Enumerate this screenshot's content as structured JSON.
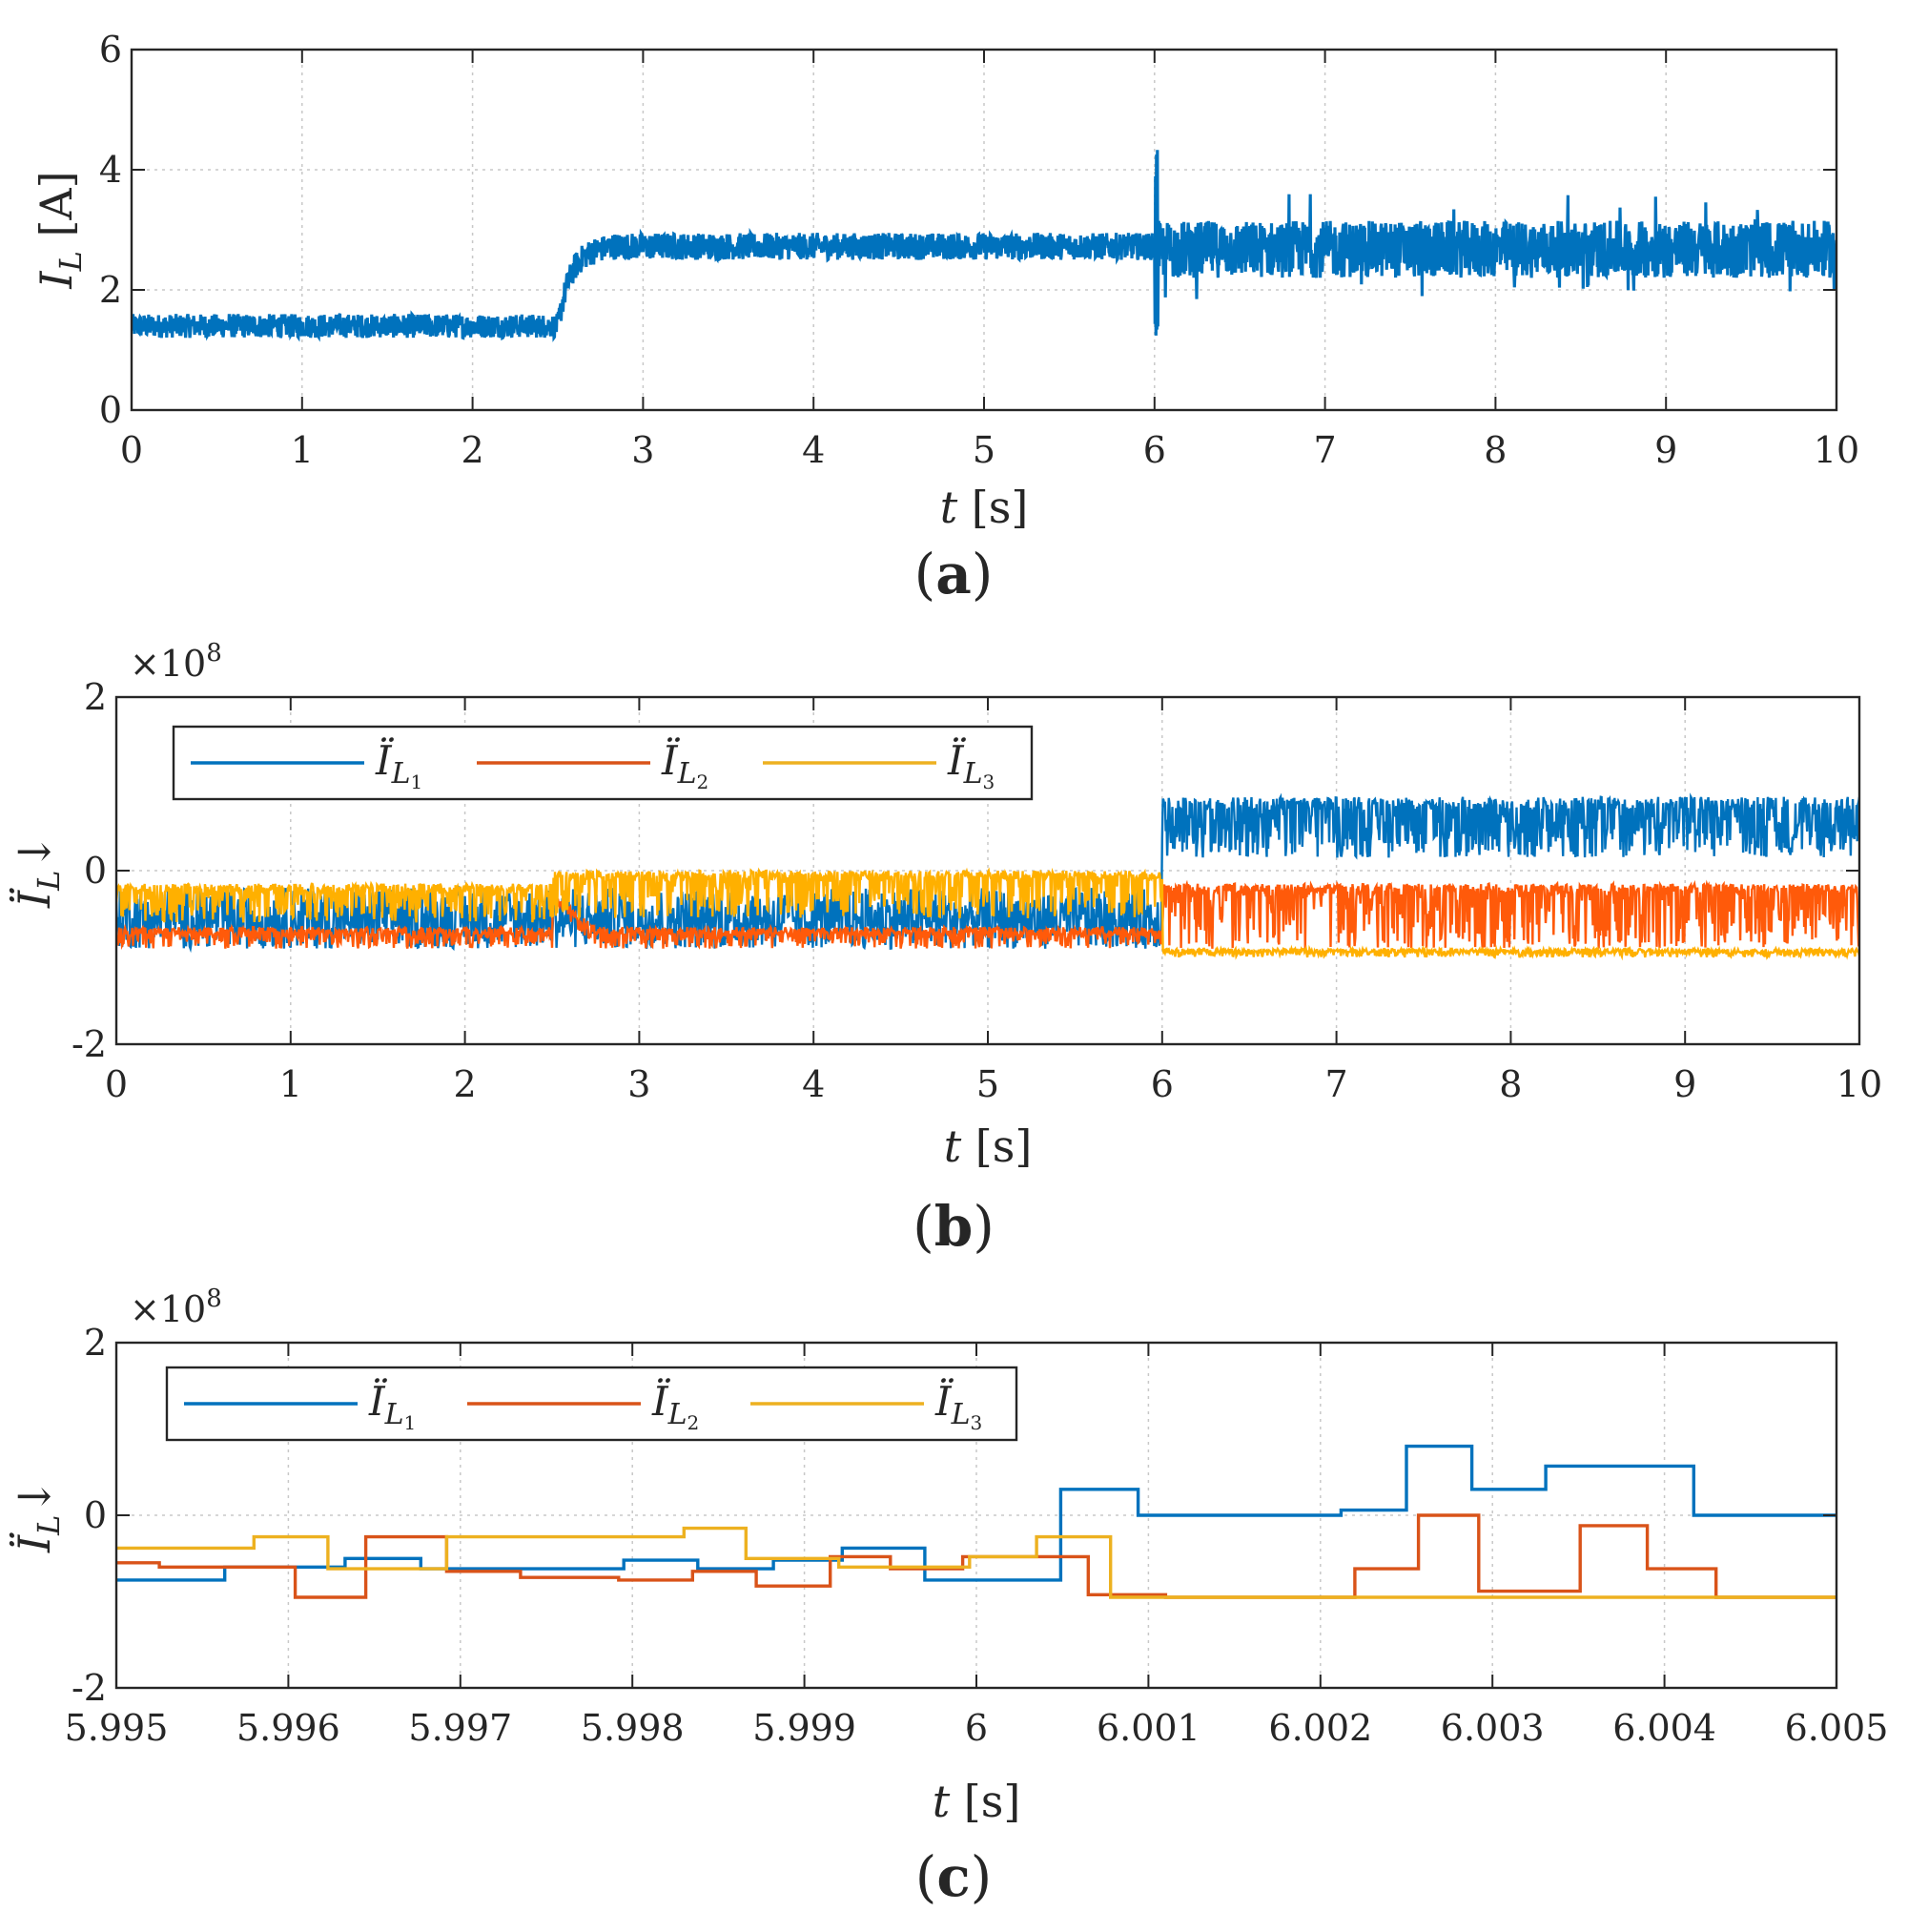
{
  "colors": {
    "IL1": "#0072BD",
    "IL2": "#D95319",
    "IL2_dense": "#FF5A0A",
    "IL3": "#EDB120",
    "IL3_dense": "#FFB000",
    "axis": "#262626",
    "grid": "#c8c8c8"
  },
  "chart_data": [
    {
      "id": "a",
      "type": "line",
      "panel_label": "a",
      "xlabel": "t [s]",
      "xlabel_var": "t",
      "xlabel_unit": "[s]",
      "ylabel_main": "I",
      "ylabel_sub": "L",
      "ylabel_unit": "[A]",
      "xlim": [
        0,
        10
      ],
      "ylim": [
        0,
        6
      ],
      "x_ticks": [
        "0",
        "1",
        "2",
        "3",
        "4",
        "5",
        "6",
        "7",
        "8",
        "9",
        "10"
      ],
      "y_ticks": [
        "0",
        "2",
        "4",
        "6"
      ],
      "grid": true,
      "series": [
        {
          "name": "I_L",
          "color_key": "IL1",
          "description": "noisy measured inductor current",
          "segments": [
            {
              "t": [
                0,
                2.5
              ],
              "mean": 1.4,
              "band": [
                1.2,
                1.6
              ]
            },
            {
              "t": [
                2.5,
                6.0
              ],
              "mean": 2.75,
              "band": [
                2.5,
                2.95
              ],
              "rise_from": 1.4,
              "rise_time": 0.3
            },
            {
              "t": [
                6.0,
                10.0
              ],
              "mean": 2.7,
              "band": [
                2.2,
                3.15
              ],
              "spike_max": 4.4,
              "spike_min": 1.1
            }
          ]
        }
      ]
    },
    {
      "id": "b",
      "type": "line",
      "panel_label": "b",
      "xlabel": "t [s]",
      "xlabel_var": "t",
      "xlabel_unit": "[s]",
      "ylabel_main": "Ï",
      "ylabel_sub": "L",
      "ylabel_suffix": "↓",
      "multiplier": "×10",
      "multiplier_exp": "8",
      "xlim": [
        0,
        10
      ],
      "ylim": [
        -2,
        2
      ],
      "x_ticks": [
        "0",
        "1",
        "2",
        "3",
        "4",
        "5",
        "6",
        "7",
        "8",
        "9",
        "10"
      ],
      "y_ticks": [
        "-2",
        "0",
        "2"
      ],
      "grid": true,
      "legend": {
        "position": "top-left",
        "entries": [
          {
            "main": "Ï",
            "sub": "L",
            "subsub": "1",
            "color_key": "IL1"
          },
          {
            "main": "Ï",
            "sub": "L",
            "subsub": "2",
            "color_key": "IL2"
          },
          {
            "main": "Ï",
            "sub": "L",
            "subsub": "3",
            "color_key": "IL3"
          }
        ]
      },
      "series": [
        {
          "name": "Ï_L1",
          "segments": [
            {
              "t": [
                0,
                6.0
              ],
              "band": [
                -0.9,
                -0.2
              ]
            },
            {
              "t": [
                6.0,
                10.0
              ],
              "band": [
                0.05,
                0.9
              ]
            }
          ]
        },
        {
          "name": "Ï_L2",
          "segments": [
            {
              "t": [
                0,
                2.5
              ],
              "band": [
                -0.9,
                -0.65
              ]
            },
            {
              "t": [
                2.5,
                6.0
              ],
              "band": [
                -0.9,
                -0.65
              ]
            },
            {
              "t": [
                6.0,
                10.0
              ],
              "band": [
                -0.9,
                -0.15
              ]
            }
          ]
        },
        {
          "name": "Ï_L3",
          "segments": [
            {
              "t": [
                0,
                2.5
              ],
              "band": [
                -0.6,
                -0.15
              ]
            },
            {
              "t": [
                2.5,
                6.0
              ],
              "band": [
                -0.55,
                0.0
              ]
            },
            {
              "t": [
                6.0,
                10.0
              ],
              "band": [
                -0.95,
                -0.9
              ]
            }
          ]
        }
      ]
    },
    {
      "id": "c",
      "type": "line",
      "panel_label": "c",
      "xlabel": "t [s]",
      "xlabel_var": "t",
      "xlabel_unit": "[s]",
      "ylabel_main": "Ï",
      "ylabel_sub": "L",
      "ylabel_suffix": "↓",
      "multiplier": "×10",
      "multiplier_exp": "8",
      "xlim": [
        5.995,
        6.005
      ],
      "ylim": [
        -2,
        2
      ],
      "x_ticks": [
        "5.995",
        "5.996",
        "5.997",
        "5.998",
        "5.999",
        "6",
        "6.001",
        "6.002",
        "6.003",
        "6.004",
        "6.005"
      ],
      "y_ticks": [
        "-2",
        "0",
        "2"
      ],
      "grid": true,
      "legend": {
        "position": "top-left",
        "entries": [
          {
            "main": "Ï",
            "sub": "L",
            "subsub": "1",
            "color_key": "IL1"
          },
          {
            "main": "Ï",
            "sub": "L",
            "subsub": "2",
            "color_key": "IL2"
          },
          {
            "main": "Ï",
            "sub": "L",
            "subsub": "3",
            "color_key": "IL3"
          }
        ]
      },
      "series": [
        {
          "name": "Ï_L1",
          "color_key": "IL1",
          "steps": [
            [
              5.995,
              -0.75
            ],
            [
              5.99563,
              -0.75
            ],
            [
              5.99563,
              -0.6
            ],
            [
              5.99633,
              -0.6
            ],
            [
              5.99633,
              -0.5
            ],
            [
              5.99677,
              -0.5
            ],
            [
              5.99677,
              -0.62
            ],
            [
              5.99795,
              -0.62
            ],
            [
              5.99795,
              -0.52
            ],
            [
              5.99838,
              -0.52
            ],
            [
              5.99838,
              -0.62
            ],
            [
              5.99882,
              -0.62
            ],
            [
              5.99882,
              -0.52
            ],
            [
              5.99922,
              -0.52
            ],
            [
              5.99922,
              -0.38
            ],
            [
              5.9997,
              -0.38
            ],
            [
              5.9997,
              -0.75
            ],
            [
              6.00049,
              -0.75
            ],
            [
              6.00049,
              0.3
            ],
            [
              6.00094,
              0.3
            ],
            [
              6.00094,
              0.0
            ],
            [
              6.00212,
              0.0
            ],
            [
              6.00212,
              0.06
            ],
            [
              6.0025,
              0.06
            ],
            [
              6.0025,
              0.8
            ],
            [
              6.00288,
              0.8
            ],
            [
              6.00288,
              0.3
            ],
            [
              6.00331,
              0.3
            ],
            [
              6.00331,
              0.57
            ],
            [
              6.00417,
              0.57
            ],
            [
              6.00417,
              0.0
            ],
            [
              6.005,
              0.0
            ]
          ]
        },
        {
          "name": "Ï_L2",
          "color_key": "IL2",
          "steps": [
            [
              5.995,
              -0.55
            ],
            [
              5.99525,
              -0.55
            ],
            [
              5.99525,
              -0.6
            ],
            [
              5.99604,
              -0.6
            ],
            [
              5.99604,
              -0.95
            ],
            [
              5.99645,
              -0.95
            ],
            [
              5.99645,
              -0.25
            ],
            [
              5.99692,
              -0.25
            ],
            [
              5.99692,
              -0.65
            ],
            [
              5.99735,
              -0.65
            ],
            [
              5.99735,
              -0.72
            ],
            [
              5.99792,
              -0.72
            ],
            [
              5.99792,
              -0.75
            ],
            [
              5.99835,
              -0.75
            ],
            [
              5.99835,
              -0.65
            ],
            [
              5.99872,
              -0.65
            ],
            [
              5.99872,
              -0.82
            ],
            [
              5.99915,
              -0.82
            ],
            [
              5.99915,
              -0.48
            ],
            [
              5.9995,
              -0.48
            ],
            [
              5.9995,
              -0.62
            ],
            [
              5.99992,
              -0.62
            ],
            [
              5.99992,
              -0.48
            ],
            [
              6.00065,
              -0.48
            ],
            [
              6.00065,
              -0.92
            ],
            [
              6.0011,
              -0.92
            ],
            [
              6.0011,
              -0.95
            ],
            [
              6.0022,
              -0.95
            ],
            [
              6.0022,
              -0.62
            ],
            [
              6.00257,
              -0.62
            ],
            [
              6.00257,
              0.0
            ],
            [
              6.00292,
              0.0
            ],
            [
              6.00292,
              -0.88
            ],
            [
              6.00351,
              -0.88
            ],
            [
              6.00351,
              -0.12
            ],
            [
              6.0039,
              -0.12
            ],
            [
              6.0039,
              -0.62
            ],
            [
              6.0043,
              -0.62
            ],
            [
              6.0043,
              -0.95
            ],
            [
              6.005,
              -0.95
            ]
          ]
        },
        {
          "name": "Ï_L3",
          "color_key": "IL3",
          "steps": [
            [
              5.995,
              -0.38
            ],
            [
              5.9958,
              -0.38
            ],
            [
              5.9958,
              -0.25
            ],
            [
              5.99623,
              -0.25
            ],
            [
              5.99623,
              -0.62
            ],
            [
              5.99692,
              -0.62
            ],
            [
              5.99692,
              -0.25
            ],
            [
              5.9983,
              -0.25
            ],
            [
              5.9983,
              -0.15
            ],
            [
              5.99866,
              -0.15
            ],
            [
              5.99866,
              -0.5
            ],
            [
              5.9992,
              -0.5
            ],
            [
              5.9992,
              -0.6
            ],
            [
              5.99996,
              -0.6
            ],
            [
              5.99996,
              -0.48
            ],
            [
              6.00035,
              -0.48
            ],
            [
              6.00035,
              -0.25
            ],
            [
              6.00078,
              -0.25
            ],
            [
              6.00078,
              -0.95
            ],
            [
              6.005,
              -0.95
            ]
          ]
        }
      ]
    }
  ]
}
